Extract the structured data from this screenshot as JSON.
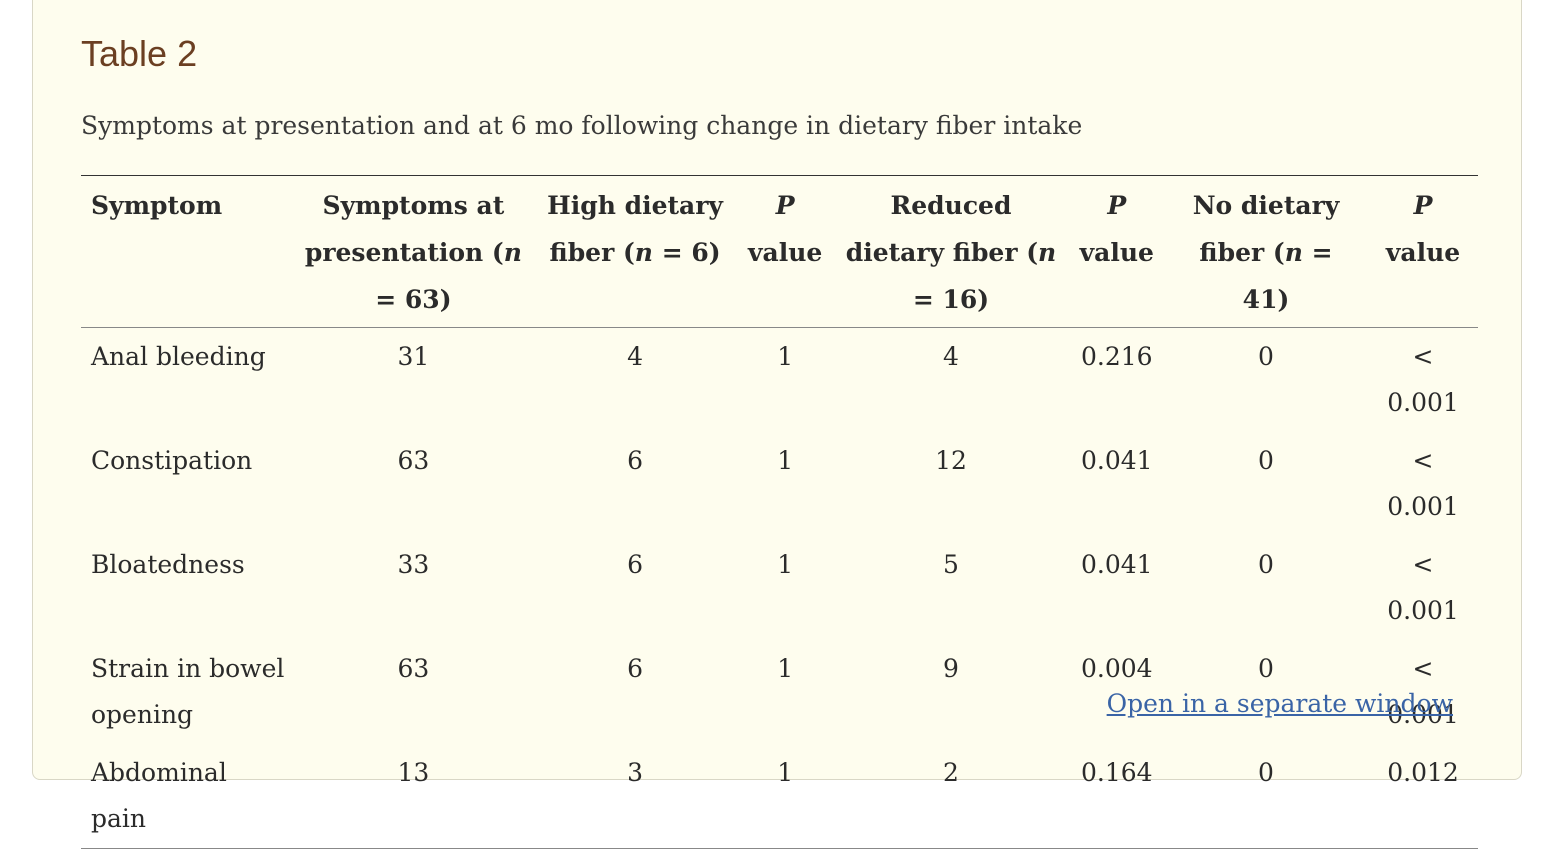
{
  "title": "Table 2",
  "caption": "Symptoms at presentation and at 6 mo following change in dietary fiber intake",
  "columns": [
    "Symptom",
    "Symptoms at presentation (n = 63)",
    "High dietary fiber (n = 6)",
    "P value",
    "Reduced dietary fiber (n = 16)",
    "P value",
    "No dietary fiber (n = 41)",
    "P value"
  ],
  "rows": [
    [
      "Anal bleeding",
      "31",
      "4",
      "1",
      "4",
      "0.216",
      "0",
      "< 0.001"
    ],
    [
      "Constipation",
      "63",
      "6",
      "1",
      "12",
      "0.041",
      "0",
      "< 0.001"
    ],
    [
      "Bloatedness",
      "33",
      "6",
      "1",
      "5",
      "0.041",
      "0",
      "< 0.001"
    ],
    [
      "Strain in bowel opening",
      "63",
      "6",
      "1",
      "9",
      "0.004",
      "0",
      "< 0.001"
    ],
    [
      "Abdominal pain",
      "13",
      "3",
      "1",
      "2",
      "0.164",
      "0",
      "0.012"
    ]
  ],
  "link": "Open in a separate window"
}
